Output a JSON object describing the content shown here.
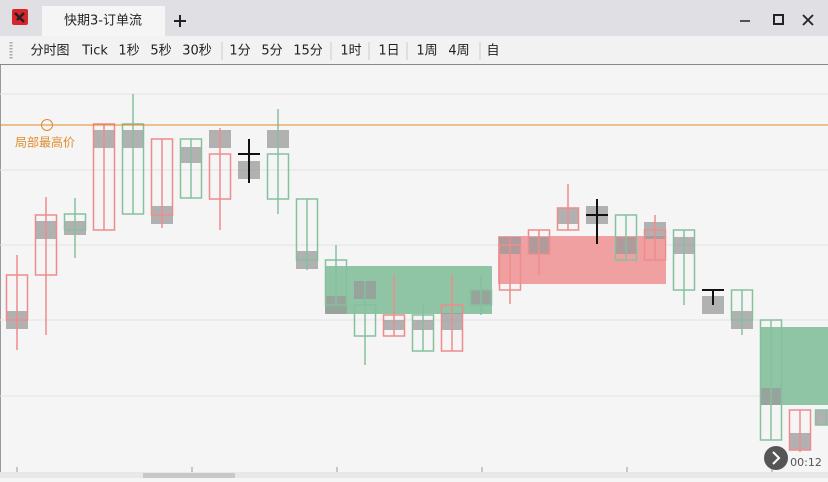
{
  "window": {
    "tab_title": "快期3-订单流"
  },
  "toolbar": {
    "items": [
      "分时图",
      "Tick",
      "1秒",
      "5秒",
      "30秒",
      "1分",
      "5分",
      "15分",
      "1时",
      "1日",
      "1周",
      "4周",
      "自"
    ]
  },
  "chart": {
    "annotation": "局部最高价",
    "time_label": "00:12"
  }
}
